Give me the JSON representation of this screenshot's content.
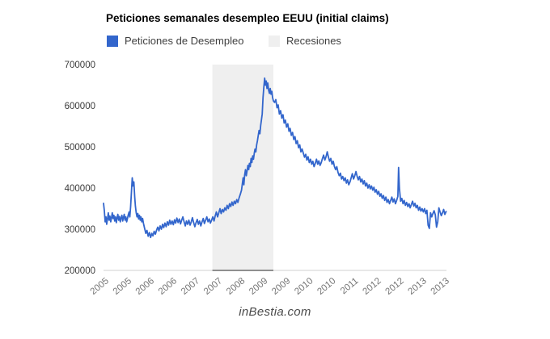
{
  "title": "Peticiones semanales desempleo EEUU (initial claims)",
  "legend": [
    {
      "label": "Peticiones de Desempleo",
      "color": "#3366CC"
    },
    {
      "label": "Recesiones",
      "color": "#EFEFEF"
    }
  ],
  "watermark": "inBestia.com",
  "colors": {
    "line": "#3366CC",
    "recession_band": "#EFEFEF",
    "baseline": "#d0d0d0",
    "baseline_band_segment": "#8f8f8f",
    "y_tick_text": "#3a3a3a",
    "x_tick_text": "#757575"
  },
  "chart_data": {
    "type": "line",
    "title": "Peticiones semanales desempleo EEUU (initial claims)",
    "xlabel": "",
    "ylabel": "",
    "grid": false,
    "legend_position": "top",
    "x_axis": {
      "range": [
        2005.0,
        2013.6
      ],
      "ticks": [
        "2005",
        "2005",
        "2006",
        "2006",
        "2007",
        "2007",
        "2008",
        "2009",
        "2009",
        "2010",
        "2010",
        "2011",
        "2012",
        "2012",
        "2013",
        "2013"
      ]
    },
    "y_axis": {
      "range": [
        200000,
        700000
      ],
      "ticks": [
        {
          "value": 200000,
          "label": "200000"
        },
        {
          "value": 300000,
          "label": "300000"
        },
        {
          "value": 400000,
          "label": "400000"
        },
        {
          "value": 500000,
          "label": "500000"
        },
        {
          "value": 600000,
          "label": "600000"
        },
        {
          "value": 700000,
          "label": "700000"
        }
      ]
    },
    "recession_band": {
      "name": "Recesiones",
      "from": 2007.73,
      "to": 2009.26,
      "color": "#EFEFEF"
    },
    "series": [
      {
        "name": "Peticiones de Desempleo",
        "color": "#3366CC",
        "unit": "weekly initial claims",
        "segments": [
          {
            "start": 2005.0,
            "step": 0.02,
            "values": [
              363000,
              345000,
              318000,
              330000,
              312000,
              325000,
              340000,
              322000,
              332000,
              318000,
              328000,
              340000,
              326000,
              334000,
              320000,
              330000,
              316000,
              328000,
              336000,
              322000,
              331000,
              318000,
              327000,
              334000,
              320000,
              329000,
              336000,
              322000,
              330000,
              318000,
              326000,
              335000,
              342000,
              330000
            ]
          },
          {
            "start": 2005.68,
            "step": 0.02,
            "values": [
              355000,
              390000,
              425000,
              405000,
              415000,
              380000,
              356000,
              340000,
              330000,
              338000,
              325000,
              334000,
              322000,
              330000,
              318000,
              326000
            ]
          },
          {
            "start": 2006.0,
            "step": 0.03,
            "values": [
              315000,
              302000,
              290000,
              297000,
              283000,
              292000,
              280000,
              290000,
              284000,
              295000,
              288000,
              298000,
              305000,
              296000,
              308000,
              300000,
              312000,
              304000,
              315000,
              306000,
              318000,
              310000,
              322000,
              312000,
              320000,
              311000,
              323000,
              315000,
              327000,
              316000,
              325000,
              313000,
              322000,
              330000
            ]
          },
          {
            "start": 2007.02,
            "step": 0.03,
            "values": [
              318000,
              308000,
              320000,
              312000,
              322000,
              310000,
              318000,
              328000,
              316000,
              306000,
              316000,
              324000,
              312000,
              320000,
              308000,
              318000,
              326000,
              314000,
              322000,
              330000,
              318000,
              325000,
              315000,
              322000
            ]
          },
          {
            "start": 2007.74,
            "step": 0.03,
            "values": [
              330000,
              320000,
              332000,
              342000,
              330000,
              340000,
              350000,
              338000,
              348000
            ]
          },
          {
            "start": 2008.01,
            "step": 0.03,
            "values": [
              342000,
              352000,
              346000,
              358000,
              350000,
              362000,
              355000,
              366000,
              358000,
              368000,
              362000,
              372000,
              365000,
              376000,
              385000
            ]
          },
          {
            "start": 2008.46,
            "step": 0.02,
            "values": [
              395000,
              410000,
              425000,
              408000,
              432000,
              445000,
              430000,
              442000,
              455000,
              445000,
              460000,
              452000,
              472000,
              462000,
              478000,
              470000,
              485000,
              495000,
              488000,
              505000,
              515000,
              528000,
              540000,
              532000,
              552000,
              565000,
              580000
            ]
          },
          {
            "start": 2009.0,
            "step": 0.02,
            "values": [
              620000,
              645000,
              667000,
              650000,
              660000,
              642000,
              655000,
              638000,
              630000,
              642000,
              628000,
              635000,
              620000,
              612000
            ]
          },
          {
            "start": 2009.29,
            "step": 0.03,
            "values": [
              608000,
              615000,
              595000,
              602000,
              580000,
              588000,
              570000,
              578000,
              558000,
              565000,
              548000,
              556000,
              538000,
              545000,
              528000,
              535000,
              518000,
              525000,
              508000,
              515000,
              498000,
              505000,
              488000,
              495000
            ]
          },
          {
            "start": 2010.01,
            "step": 0.03,
            "values": [
              485000,
              475000,
              482000,
              468000,
              476000,
              462000,
              470000,
              458000,
              465000,
              452000,
              460000,
              470000,
              458000,
              466000,
              455000,
              462000,
              472000,
              480000,
              468000,
              476000,
              488000,
              475000,
              465000,
              472000,
              458000,
              465000,
              452000,
              445000,
              452000,
              438000,
              430000,
              436000,
              422000
            ]
          },
          {
            "start": 2011.0,
            "step": 0.03,
            "values": [
              428000,
              418000,
              425000,
              412000,
              420000,
              408000,
              415000,
              425000,
              435000,
              422000,
              430000,
              440000,
              428000,
              420000,
              428000,
              415000,
              422000,
              410000,
              418000,
              405000,
              412000,
              400000,
              408000,
              398000,
              405000,
              395000,
              402000,
              390000,
              396000,
              385000,
              392000,
              380000,
              386000,
              375000
            ]
          },
          {
            "start": 2012.02,
            "step": 0.03,
            "values": [
              382000,
              370000,
              378000,
              365000,
              372000,
              362000,
              370000,
              378000,
              366000,
              374000,
              362000,
              370000,
              380000
            ]
          },
          {
            "start": 2012.4,
            "step": 0.02,
            "values": [
              450000,
              400000
            ]
          },
          {
            "start": 2012.45,
            "step": 0.03,
            "values": [
              368000,
              375000,
              362000,
              370000,
              358000,
              365000,
              355000,
              362000,
              352000,
              360000,
              368000,
              356000,
              363000,
              352000,
              358000,
              346000,
              354000,
              344000
            ]
          },
          {
            "start": 2012.99,
            "step": 0.03,
            "values": [
              350000,
              342000,
              350000,
              338000,
              346000,
              310000,
              302000,
              340000,
              330000,
              338000,
              345000,
              335000,
              305000,
              318000,
              352000,
              342000,
              333000,
              340000,
              348000,
              336000,
              343000
            ]
          }
        ]
      }
    ]
  }
}
